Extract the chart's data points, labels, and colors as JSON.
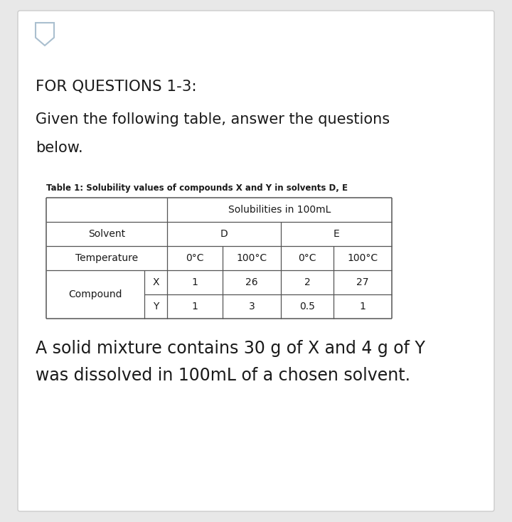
{
  "bg_color": "#e8e8e8",
  "card_color": "#ffffff",
  "heading": "FOR QUESTIONS 1-3:",
  "subheading_line1": "Given the following table, answer the questions",
  "subheading_line2": "below.",
  "table_title": "Table 1: Solubility values of compounds X and Y in solvents D, E",
  "col_header_1": "Solubilities in 100mL",
  "solvent_label": "Solvent",
  "solvent_D": "D",
  "solvent_E": "E",
  "temp_label": "Temperature",
  "temp_cols": [
    "0°C",
    "100°C",
    "0°C",
    "100°C"
  ],
  "compound_label": "Compound",
  "compound_X": "X",
  "compound_Y": "Y",
  "data_X": [
    "1",
    "26",
    "2",
    "27"
  ],
  "data_Y": [
    "1",
    "3",
    "0.5",
    "1"
  ],
  "footer_line1": "A solid mixture contains 30 g of X and 4 g of Y",
  "footer_line2": "was dissolved in 100mL of a chosen solvent.",
  "bookmark_color": "#aabfcf",
  "line_color": "#555555",
  "text_color": "#1a1a1a",
  "card_border_color": "#cccccc"
}
